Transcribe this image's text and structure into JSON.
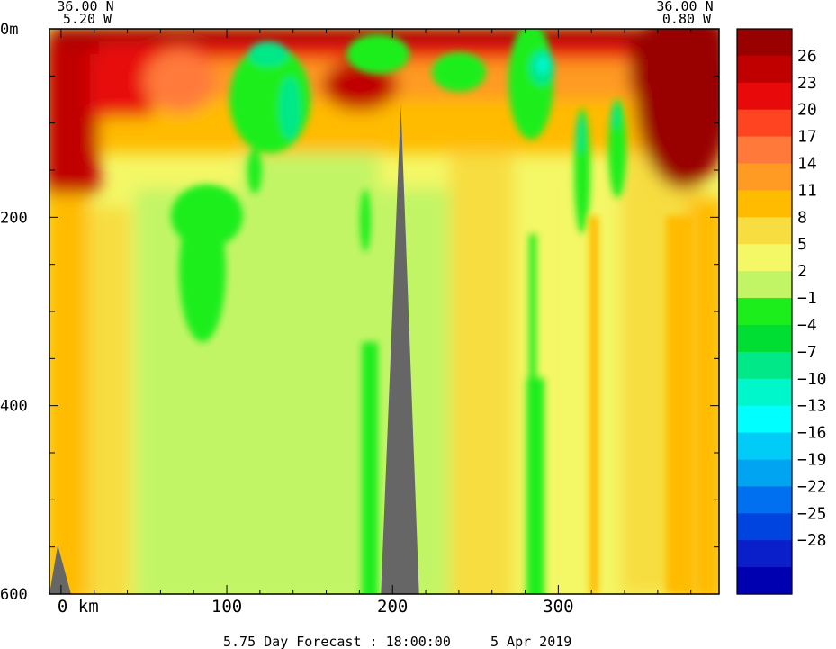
{
  "chart_data": {
    "type": "heatmap",
    "title": "",
    "corner_labels": {
      "top_left_lat": "36.00 N",
      "top_left_lon": "5.20 W",
      "top_right_lat": "36.00 N",
      "top_right_lon": "0.80 W"
    },
    "x_axis": {
      "unit": "km",
      "range": [
        -7,
        397
      ],
      "ticks": [
        0,
        100,
        200,
        300
      ],
      "tick_labels": [
        "0  km",
        "100",
        "200",
        "300"
      ]
    },
    "y_axis": {
      "unit": "m",
      "range": [
        0,
        600
      ],
      "inverted": true,
      "tick_labels": [
        {
          "value": 0,
          "label": "0m"
        },
        {
          "value": 200,
          "label": "200"
        },
        {
          "value": 400,
          "label": "400"
        },
        {
          "value": 600,
          "label": "600"
        }
      ]
    },
    "colorbar": {
      "levels": [
        "26",
        "23",
        "20",
        "17",
        "14",
        "11",
        "8",
        "5",
        "2",
        "−1",
        "−4",
        "−7",
        "−10",
        "−13",
        "−16",
        "−19",
        "−22",
        "−25",
        "−28"
      ],
      "colors": [
        "#990000",
        "#c00000",
        "#e80a0a",
        "#ff4422",
        "#ff7a3a",
        "#ff9a22",
        "#ffbb00",
        "#f7dd40",
        "#f4f766",
        "#c2f566",
        "#1cee1c",
        "#00dd33",
        "#00e888",
        "#00f7cc",
        "#00ffff",
        "#00ccf7",
        "#00a4f0",
        "#0070f0",
        "#0044e0",
        "#0a1eca",
        "#0000b0"
      ]
    },
    "series": [
      {
        "x": [
          -7,
          60
        ],
        "y": [
          0,
          60
        ],
        "value": 23
      },
      {
        "x": [
          60,
          120
        ],
        "y": [
          0,
          40
        ],
        "value": 20
      },
      {
        "x": [
          120,
          160
        ],
        "y": [
          15,
          100
        ],
        "value": -7
      },
      {
        "x": [
          160,
          205
        ],
        "y": [
          40,
          80
        ],
        "value": 23
      },
      {
        "x": [
          205,
          290
        ],
        "y": [
          0,
          30
        ],
        "value": 14
      },
      {
        "x": [
          280,
          300
        ],
        "y": [
          20,
          60
        ],
        "value": -10
      },
      {
        "x": [
          340,
          397
        ],
        "y": [
          0,
          160
        ],
        "value": 26
      },
      {
        "x": [
          80,
          110
        ],
        "y": [
          180,
          350
        ],
        "value": -4
      },
      {
        "x": [
          190,
          200
        ],
        "y": [
          320,
          600
        ],
        "value": -4
      },
      {
        "x": [
          280,
          290
        ],
        "y": [
          200,
          600
        ],
        "value": -4
      },
      {
        "x": [
          -7,
          20
        ],
        "y": [
          100,
          600
        ],
        "value": 8
      },
      {
        "x": [
          20,
          397
        ],
        "y": [
          200,
          600
        ],
        "value": 2
      }
    ],
    "terrain": [
      {
        "label": "seafloor-ridge-center",
        "points": [
          [
            193,
            600
          ],
          [
            205,
            80
          ],
          [
            216,
            600
          ]
        ]
      },
      {
        "label": "seafloor-ridge-left",
        "points": [
          [
            -7,
            600
          ],
          [
            -2,
            548
          ],
          [
            6,
            600
          ]
        ]
      }
    ]
  },
  "footer": {
    "forecast_label": "5.75 Day Forecast : 18:00:00",
    "date_label": "5 Apr 2019"
  }
}
